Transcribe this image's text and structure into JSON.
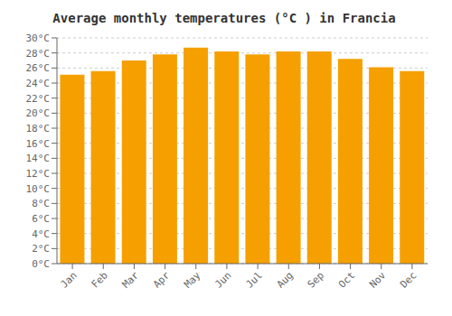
{
  "chart_data": {
    "type": "bar",
    "title": "Average monthly temperatures (°C ) in Francia",
    "categories": [
      "Jan",
      "Feb",
      "Mar",
      "Apr",
      "May",
      "Jun",
      "Jul",
      "Aug",
      "Sep",
      "Oct",
      "Nov",
      "Dec"
    ],
    "values": [
      25.1,
      25.6,
      27.0,
      27.8,
      28.7,
      28.2,
      27.8,
      28.2,
      28.2,
      27.2,
      26.1,
      25.6
    ],
    "color": "#F5A000",
    "ylim": [
      0,
      30
    ],
    "yticks": [
      {
        "value": 0,
        "label": "0°C"
      },
      {
        "value": 2,
        "label": "2°C"
      },
      {
        "value": 4,
        "label": "4°C"
      },
      {
        "value": 6,
        "label": "6°C"
      },
      {
        "value": 8,
        "label": "8°C"
      },
      {
        "value": 10,
        "label": "10°C"
      },
      {
        "value": 12,
        "label": "12°C"
      },
      {
        "value": 14,
        "label": "14°C"
      },
      {
        "value": 16,
        "label": "16°C"
      },
      {
        "value": 18,
        "label": "18°C"
      },
      {
        "value": 20,
        "label": "20°C"
      },
      {
        "value": 22,
        "label": "22°C"
      },
      {
        "value": 24,
        "label": "24°C"
      },
      {
        "value": 26,
        "label": "26°C"
      },
      {
        "value": 28,
        "label": "28°C"
      },
      {
        "value": 30,
        "label": "30°C"
      }
    ],
    "grid": true
  }
}
